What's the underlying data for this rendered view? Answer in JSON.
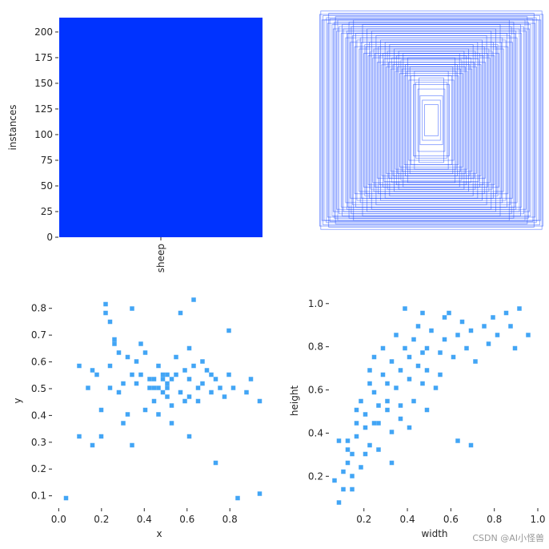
{
  "chart_data": [
    {
      "type": "bar",
      "categories": [
        "sheep"
      ],
      "values": [
        214
      ],
      "xlabel": "",
      "ylabel": "instances",
      "ylim": [
        0,
        214
      ],
      "yticks": [
        "0",
        "25",
        "50",
        "75",
        "100",
        "125",
        "150",
        "175",
        "200"
      ],
      "bar_color": "#0033ff"
    },
    {
      "type": "box-overlay",
      "description_color": "#0033ff",
      "boxes_wh": [
        [
          0.98,
          0.98
        ],
        [
          0.96,
          0.94
        ],
        [
          0.93,
          0.92
        ],
        [
          0.9,
          0.91
        ],
        [
          0.88,
          0.86
        ],
        [
          0.86,
          0.88
        ],
        [
          0.84,
          0.8
        ],
        [
          0.82,
          0.84
        ],
        [
          0.8,
          0.78
        ],
        [
          0.78,
          0.82
        ],
        [
          0.76,
          0.74
        ],
        [
          0.74,
          0.78
        ],
        [
          0.72,
          0.7
        ],
        [
          0.7,
          0.76
        ],
        [
          0.68,
          0.66
        ],
        [
          0.66,
          0.72
        ],
        [
          0.64,
          0.64
        ],
        [
          0.62,
          0.7
        ],
        [
          0.6,
          0.6
        ],
        [
          0.58,
          0.66
        ],
        [
          0.56,
          0.58
        ],
        [
          0.54,
          0.62
        ],
        [
          0.52,
          0.56
        ],
        [
          0.5,
          0.6
        ],
        [
          0.48,
          0.52
        ],
        [
          0.46,
          0.58
        ],
        [
          0.44,
          0.5
        ],
        [
          0.42,
          0.55
        ],
        [
          0.4,
          0.48
        ],
        [
          0.38,
          0.52
        ],
        [
          0.36,
          0.46
        ],
        [
          0.34,
          0.5
        ],
        [
          0.32,
          0.44
        ],
        [
          0.3,
          0.48
        ],
        [
          0.28,
          0.42
        ],
        [
          0.26,
          0.46
        ],
        [
          0.24,
          0.4
        ],
        [
          0.22,
          0.44
        ],
        [
          0.2,
          0.36
        ],
        [
          0.18,
          0.4
        ],
        [
          0.16,
          0.32
        ],
        [
          0.14,
          0.34
        ],
        [
          0.12,
          0.28
        ],
        [
          0.1,
          0.22
        ],
        [
          0.08,
          0.18
        ],
        [
          0.06,
          0.14
        ],
        [
          0.95,
          0.9
        ],
        [
          0.91,
          0.96
        ],
        [
          0.87,
          0.82
        ],
        [
          0.83,
          0.9
        ],
        [
          0.79,
          0.86
        ],
        [
          0.75,
          0.8
        ],
        [
          0.71,
          0.84
        ],
        [
          0.67,
          0.78
        ],
        [
          0.63,
          0.74
        ],
        [
          0.59,
          0.68
        ],
        [
          0.55,
          0.7
        ],
        [
          0.51,
          0.64
        ],
        [
          0.47,
          0.66
        ],
        [
          0.43,
          0.6
        ],
        [
          0.39,
          0.62
        ],
        [
          0.35,
          0.56
        ],
        [
          0.31,
          0.58
        ],
        [
          0.27,
          0.54
        ],
        [
          0.23,
          0.5
        ],
        [
          0.19,
          0.48
        ],
        [
          0.15,
          0.44
        ],
        [
          0.11,
          0.38
        ],
        [
          0.99,
          0.95
        ],
        [
          0.97,
          0.9
        ],
        [
          0.92,
          0.87
        ],
        [
          0.85,
          0.93
        ],
        [
          0.73,
          0.88
        ],
        [
          0.69,
          0.9
        ],
        [
          0.61,
          0.86
        ],
        [
          0.57,
          0.82
        ],
        [
          0.53,
          0.8
        ],
        [
          0.49,
          0.76
        ],
        [
          0.45,
          0.72
        ],
        [
          0.41,
          0.7
        ],
        [
          0.37,
          0.68
        ],
        [
          0.33,
          0.64
        ],
        [
          0.29,
          0.62
        ],
        [
          0.25,
          0.6
        ],
        [
          0.21,
          0.56
        ]
      ]
    },
    {
      "type": "heatmap",
      "xlabel": "x",
      "ylabel": "y",
      "xlim": [
        -0.02,
        0.96
      ],
      "ylim": [
        0.06,
        0.85
      ],
      "xticks": [
        "0.0",
        "0.2",
        "0.4",
        "0.6",
        "0.8"
      ],
      "xtick_values": [
        0.0,
        0.2,
        0.4,
        0.6,
        0.8
      ],
      "yticks": [
        "0.1",
        "0.2",
        "0.3",
        "0.4",
        "0.5",
        "0.6",
        "0.7",
        "0.8"
      ],
      "ytick_values": [
        0.1,
        0.2,
        0.3,
        0.4,
        0.5,
        0.6,
        0.7,
        0.8
      ],
      "points": [
        [
          0.03,
          0.09
        ],
        [
          0.1,
          0.58
        ],
        [
          0.1,
          0.32
        ],
        [
          0.16,
          0.29
        ],
        [
          0.19,
          0.32
        ],
        [
          0.21,
          0.81
        ],
        [
          0.22,
          0.79
        ],
        [
          0.25,
          0.75
        ],
        [
          0.26,
          0.69
        ],
        [
          0.27,
          0.66
        ],
        [
          0.28,
          0.49
        ],
        [
          0.29,
          0.63
        ],
        [
          0.31,
          0.37
        ],
        [
          0.33,
          0.61
        ],
        [
          0.34,
          0.55
        ],
        [
          0.35,
          0.29
        ],
        [
          0.35,
          0.8
        ],
        [
          0.36,
          0.52
        ],
        [
          0.37,
          0.6
        ],
        [
          0.38,
          0.56
        ],
        [
          0.4,
          0.42
        ],
        [
          0.41,
          0.63
        ],
        [
          0.42,
          0.54
        ],
        [
          0.43,
          0.5
        ],
        [
          0.44,
          0.53
        ],
        [
          0.45,
          0.5
        ],
        [
          0.46,
          0.58
        ],
        [
          0.47,
          0.51
        ],
        [
          0.48,
          0.55
        ],
        [
          0.48,
          0.49
        ],
        [
          0.49,
          0.53
        ],
        [
          0.5,
          0.55
        ],
        [
          0.5,
          0.5
        ],
        [
          0.51,
          0.47
        ],
        [
          0.51,
          0.52
        ],
        [
          0.52,
          0.54
        ],
        [
          0.52,
          0.44
        ],
        [
          0.53,
          0.37
        ],
        [
          0.54,
          0.61
        ],
        [
          0.55,
          0.55
        ],
        [
          0.56,
          0.49
        ],
        [
          0.57,
          0.78
        ],
        [
          0.58,
          0.46
        ],
        [
          0.59,
          0.57
        ],
        [
          0.6,
          0.53
        ],
        [
          0.6,
          0.32
        ],
        [
          0.61,
          0.65
        ],
        [
          0.62,
          0.47
        ],
        [
          0.63,
          0.83
        ],
        [
          0.64,
          0.58
        ],
        [
          0.65,
          0.5
        ],
        [
          0.66,
          0.45
        ],
        [
          0.67,
          0.6
        ],
        [
          0.68,
          0.52
        ],
        [
          0.7,
          0.57
        ],
        [
          0.71,
          0.49
        ],
        [
          0.72,
          0.56
        ],
        [
          0.73,
          0.23
        ],
        [
          0.74,
          0.54
        ],
        [
          0.75,
          0.51
        ],
        [
          0.78,
          0.47
        ],
        [
          0.79,
          0.71
        ],
        [
          0.8,
          0.55
        ],
        [
          0.82,
          0.5
        ],
        [
          0.84,
          0.09
        ],
        [
          0.88,
          0.48
        ],
        [
          0.9,
          0.53
        ],
        [
          0.93,
          0.45
        ],
        [
          0.94,
          0.11
        ],
        [
          0.14,
          0.51
        ],
        [
          0.15,
          0.57
        ],
        [
          0.18,
          0.55
        ],
        [
          0.2,
          0.42
        ],
        [
          0.23,
          0.5
        ],
        [
          0.24,
          0.58
        ],
        [
          0.3,
          0.52
        ],
        [
          0.32,
          0.4
        ],
        [
          0.39,
          0.66
        ],
        [
          0.44,
          0.46
        ],
        [
          0.46,
          0.41
        ]
      ],
      "cmap_light": "#42a5f5",
      "cmap_dark": "#1a237e"
    },
    {
      "type": "heatmap",
      "xlabel": "width",
      "ylabel": "height",
      "xlim": [
        0.05,
        1.0
      ],
      "ylim": [
        0.06,
        1.04
      ],
      "xticks": [
        "0.2",
        "0.4",
        "0.6",
        "0.8",
        "1.0"
      ],
      "xtick_values": [
        0.2,
        0.4,
        0.6,
        0.8,
        1.0
      ],
      "yticks": [
        "0.2",
        "0.4",
        "0.6",
        "0.8",
        "1.0"
      ],
      "ytick_values": [
        0.2,
        0.4,
        0.6,
        0.8,
        1.0
      ],
      "points": [
        [
          0.07,
          0.18
        ],
        [
          0.08,
          0.08
        ],
        [
          0.09,
          0.37
        ],
        [
          0.1,
          0.22
        ],
        [
          0.1,
          0.15
        ],
        [
          0.12,
          0.27
        ],
        [
          0.13,
          0.33
        ],
        [
          0.14,
          0.13
        ],
        [
          0.15,
          0.3
        ],
        [
          0.16,
          0.45
        ],
        [
          0.17,
          0.5
        ],
        [
          0.17,
          0.38
        ],
        [
          0.18,
          0.25
        ],
        [
          0.19,
          0.55
        ],
        [
          0.2,
          0.42
        ],
        [
          0.21,
          0.48
        ],
        [
          0.22,
          0.62
        ],
        [
          0.23,
          0.7
        ],
        [
          0.23,
          0.35
        ],
        [
          0.24,
          0.58
        ],
        [
          0.25,
          0.75
        ],
        [
          0.26,
          0.52
        ],
        [
          0.27,
          0.44
        ],
        [
          0.28,
          0.68
        ],
        [
          0.29,
          0.8
        ],
        [
          0.3,
          0.62
        ],
        [
          0.31,
          0.5
        ],
        [
          0.32,
          0.74
        ],
        [
          0.33,
          0.4
        ],
        [
          0.34,
          0.86
        ],
        [
          0.35,
          0.6
        ],
        [
          0.36,
          0.7
        ],
        [
          0.37,
          0.52
        ],
        [
          0.38,
          0.8
        ],
        [
          0.39,
          0.98
        ],
        [
          0.4,
          0.75
        ],
        [
          0.41,
          0.66
        ],
        [
          0.42,
          0.84
        ],
        [
          0.43,
          0.55
        ],
        [
          0.44,
          0.9
        ],
        [
          0.45,
          0.72
        ],
        [
          0.46,
          0.62
        ],
        [
          0.47,
          0.96
        ],
        [
          0.48,
          0.8
        ],
        [
          0.5,
          0.7
        ],
        [
          0.52,
          0.88
        ],
        [
          0.53,
          0.6
        ],
        [
          0.55,
          0.78
        ],
        [
          0.56,
          0.68
        ],
        [
          0.58,
          0.83
        ],
        [
          0.6,
          0.95
        ],
        [
          0.62,
          0.76
        ],
        [
          0.63,
          0.37
        ],
        [
          0.64,
          0.86
        ],
        [
          0.66,
          0.92
        ],
        [
          0.68,
          0.8
        ],
        [
          0.7,
          0.35
        ],
        [
          0.7,
          0.88
        ],
        [
          0.72,
          0.74
        ],
        [
          0.75,
          0.9
        ],
        [
          0.78,
          0.82
        ],
        [
          0.8,
          0.94
        ],
        [
          0.82,
          0.86
        ],
        [
          0.85,
          0.96
        ],
        [
          0.88,
          0.9
        ],
        [
          0.9,
          0.8
        ],
        [
          0.92,
          0.97
        ],
        [
          0.95,
          0.86
        ],
        [
          0.27,
          0.33
        ],
        [
          0.33,
          0.27
        ],
        [
          0.2,
          0.3
        ],
        [
          0.15,
          0.2
        ],
        [
          0.25,
          0.45
        ],
        [
          0.36,
          0.47
        ],
        [
          0.41,
          0.42
        ],
        [
          0.12,
          0.37
        ],
        [
          0.3,
          0.55
        ],
        [
          0.5,
          0.5
        ],
        [
          0.46,
          0.77
        ],
        [
          0.58,
          0.93
        ]
      ],
      "cmap_light": "#42a5f5",
      "cmap_dark": "#1a237e"
    }
  ],
  "watermark": "CSDN @AI小怪兽"
}
